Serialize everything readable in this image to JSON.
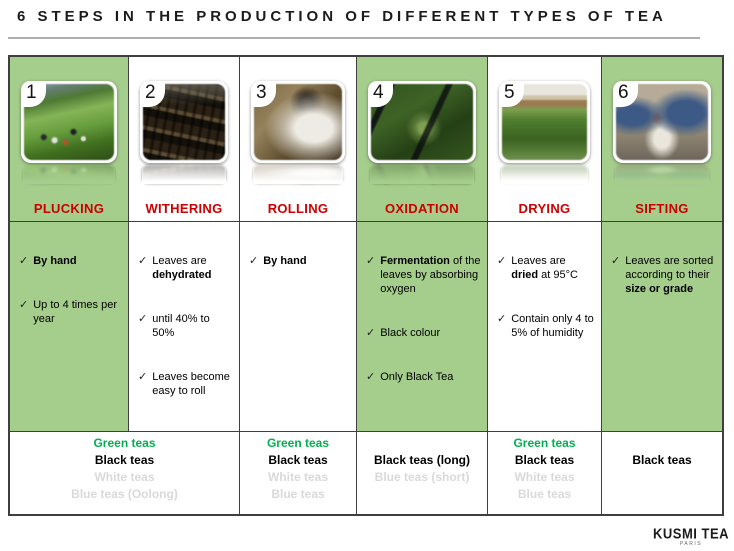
{
  "title": "6 STEPS IN THE PRODUCTION OF DIFFERENT TYPES OF TEA",
  "colors": {
    "column_green": "#a5cd8c",
    "step_label_red": "#cc0000",
    "tea_green": "#00b050",
    "tea_gray": "#d9d9d9",
    "border": "#3f3f3f"
  },
  "columns": [
    {
      "number": "1",
      "label": "PLUCKING",
      "photo": "tea-plantation-pluckers-photo",
      "green": true,
      "bullets": [
        "**By hand**",
        "Up to 4 times per year"
      ]
    },
    {
      "number": "2",
      "label": "WITHERING",
      "photo": "withering-racks-photo",
      "green": false,
      "bullets": [
        "Leaves are **dehydrated**",
        "until 40% to 50%",
        "Leaves become easy to roll"
      ]
    },
    {
      "number": "3",
      "label": "ROLLING",
      "photo": "hand-rolling-photo",
      "green": false,
      "bullets": [
        "**By hand**"
      ]
    },
    {
      "number": "4",
      "label": "OXIDATION",
      "photo": "oxidation-leaf-trays-photo",
      "green": true,
      "bullets": [
        "**Fermentation** of the leaves by absorbing oxygen",
        "Black colour",
        "Only Black Tea"
      ]
    },
    {
      "number": "5",
      "label": "DRYING",
      "photo": "drying-beds-photo",
      "green": false,
      "bullets": [
        "Leaves are **dried** at 95°C",
        "Contain only 4 to 5% of humidity"
      ]
    },
    {
      "number": "6",
      "label": "SIFTING",
      "photo": "sifting-factory-photo",
      "green": true,
      "bullets": [
        "Leaves are sorted according to their **size or grade**"
      ]
    }
  ],
  "tea_types_row": [
    {
      "steps": "plucking-withering",
      "span": 2,
      "lines": [
        {
          "text": "Green teas",
          "color": "green"
        },
        {
          "text": "Black teas",
          "color": "black"
        },
        {
          "text": "White teas",
          "color": "gray"
        },
        {
          "text": "Blue teas (Oolong)",
          "color": "gray"
        }
      ]
    },
    {
      "steps": "rolling",
      "span": 1,
      "lines": [
        {
          "text": "Green teas",
          "color": "green"
        },
        {
          "text": "Black teas",
          "color": "black"
        },
        {
          "text": "White teas",
          "color": "gray"
        },
        {
          "text": "Blue teas",
          "color": "gray"
        }
      ]
    },
    {
      "steps": "oxidation",
      "span": 1,
      "lines": [
        {
          "text": "Black teas (long)",
          "color": "black"
        },
        {
          "text": "Blue teas (short)",
          "color": "gray"
        }
      ]
    },
    {
      "steps": "drying",
      "span": 1,
      "lines": [
        {
          "text": "Green teas",
          "color": "green"
        },
        {
          "text": "Black teas",
          "color": "black"
        },
        {
          "text": "White teas",
          "color": "gray"
        },
        {
          "text": "Blue teas",
          "color": "gray"
        }
      ]
    },
    {
      "steps": "sifting",
      "span": 1,
      "lines": [
        {
          "text": "Black teas",
          "color": "black"
        }
      ]
    }
  ],
  "logo": {
    "name": "KUSMI TEA",
    "city": "PARIS"
  }
}
